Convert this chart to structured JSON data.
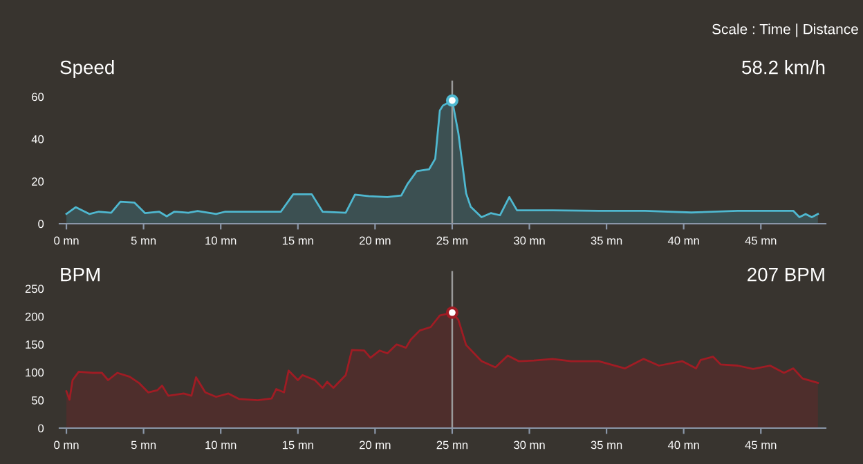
{
  "chart_data": [
    {
      "type": "area",
      "title": "Speed",
      "xlim": [
        -0.45,
        49.2
      ],
      "ylim": [
        0,
        60
      ],
      "xticks": [
        {
          "value": 0,
          "label": "0 mn"
        },
        {
          "value": 5,
          "label": "5 mn"
        },
        {
          "value": 10,
          "label": "10 mn"
        },
        {
          "value": 15,
          "label": "15 mn"
        },
        {
          "value": 20,
          "label": "20 mn"
        },
        {
          "value": 25,
          "label": "25 mn"
        },
        {
          "value": 30,
          "label": "30 mn"
        },
        {
          "value": 35,
          "label": "35 mn"
        },
        {
          "value": 40,
          "label": "40 mn"
        },
        {
          "value": 45,
          "label": "45 mn"
        }
      ],
      "yticks": [
        0,
        20,
        40,
        60
      ],
      "grid": false,
      "ref_lines": [
        {
          "axis": "x",
          "value": 25,
          "color": "#9a9a9a"
        }
      ],
      "annotations": [
        "Scale : Time | Distance",
        "58.2 km/h"
      ],
      "series": [
        {
          "color": "#4fb8d0",
          "x": [
            0,
            0.6,
            1.5,
            2.1,
            2.9,
            3.5,
            4.4,
            5.1,
            6,
            6.5,
            7,
            7.9,
            8.5,
            9.7,
            10.3,
            12.4,
            13.9,
            14.7,
            15.9,
            16.6,
            18.1,
            18.7,
            19.6,
            20.8,
            21.7,
            22.1,
            22.7,
            23.5,
            23.9,
            24.2,
            24.4,
            25.0,
            25.4,
            25.9,
            26.2,
            26.9,
            27.5,
            28.1,
            28.7,
            29.2,
            31.5,
            34.5,
            37.5,
            40.5,
            43.5,
            47.1,
            47.5,
            47.9,
            48.3,
            48.7
          ],
          "values": [
            4.6,
            7.8,
            4.6,
            5.7,
            5.2,
            10.4,
            10,
            5,
            5.7,
            3.5,
            5.7,
            5.2,
            6,
            4.6,
            5.7,
            5.7,
            5.7,
            13.9,
            13.9,
            5.7,
            5.2,
            13.7,
            13,
            12.6,
            13.3,
            18.7,
            24.8,
            25.7,
            30.7,
            53.5,
            55.8,
            58.2,
            42.7,
            14.4,
            8,
            3.1,
            5,
            4,
            12.6,
            6.3,
            6.3,
            6.1,
            6.1,
            5.3,
            6.1,
            6.1,
            3.1,
            4.6,
            3.1,
            4.6
          ]
        }
      ]
    },
    {
      "type": "area",
      "title": "BPM",
      "xlim": [
        -0.45,
        49.2
      ],
      "ylim": [
        0,
        250
      ],
      "xticks": [
        {
          "value": 0,
          "label": "0 mn"
        },
        {
          "value": 5,
          "label": "5 mn"
        },
        {
          "value": 10,
          "label": "10 mn"
        },
        {
          "value": 15,
          "label": "15 mn"
        },
        {
          "value": 20,
          "label": "20 mn"
        },
        {
          "value": 25,
          "label": "25 mn"
        },
        {
          "value": 30,
          "label": "30 mn"
        },
        {
          "value": 35,
          "label": "35 mn"
        },
        {
          "value": 40,
          "label": "40 mn"
        },
        {
          "value": 45,
          "label": "45 mn"
        }
      ],
      "yticks": [
        0,
        50,
        100,
        150,
        200,
        250
      ],
      "grid": false,
      "ref_lines": [
        {
          "axis": "x",
          "value": 25,
          "color": "#9a9a9a"
        }
      ],
      "annotations": [
        "207 BPM"
      ],
      "series": [
        {
          "color": "#a01c24",
          "x": [
            0,
            0.2,
            0.4,
            0.8,
            1.7,
            2.3,
            2.7,
            3.3,
            4.1,
            4.7,
            5.3,
            5.9,
            6.2,
            6.6,
            7.6,
            8.1,
            8.4,
            9.0,
            9.7,
            10.5,
            11.2,
            12.4,
            13.3,
            13.6,
            14.1,
            14.4,
            15.0,
            15.3,
            16.1,
            16.6,
            16.9,
            17.3,
            18.1,
            18.5,
            19.3,
            19.7,
            20.3,
            20.8,
            21.4,
            22.0,
            22.3,
            22.9,
            23.6,
            24.2,
            25.0,
            25.4,
            25.9,
            26.9,
            27.8,
            28.6,
            29.3,
            30.3,
            31.5,
            32.7,
            34.5,
            36.2,
            37.4,
            38.4,
            39.9,
            40.8,
            41.1,
            41.9,
            42.4,
            43.5,
            44.5,
            45.6,
            46.5,
            47.1,
            47.7,
            48.7
          ],
          "values": [
            66,
            51,
            86,
            101,
            99,
            99,
            86,
            99,
            92,
            81,
            64,
            68,
            76,
            58,
            62,
            58,
            91,
            64,
            56,
            62,
            52,
            50,
            53,
            70,
            64,
            103,
            86,
            95,
            86,
            72,
            83,
            72,
            95,
            140,
            139,
            126,
            139,
            134,
            150,
            144,
            158,
            175,
            181,
            202,
            207,
            194,
            149,
            120,
            109,
            130,
            120,
            121,
            124,
            120,
            120,
            107,
            124,
            112,
            120,
            107,
            122,
            128,
            114,
            112,
            106,
            112,
            99,
            107,
            89,
            81
          ]
        }
      ]
    }
  ]
}
